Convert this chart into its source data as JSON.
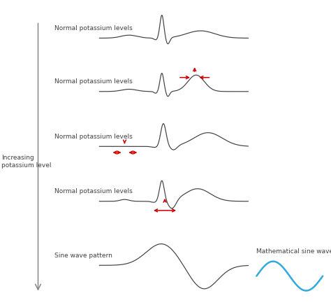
{
  "bg_color": "#ffffff",
  "text_color": "#404040",
  "arrow_color": "#cc0000",
  "sine_wave_color": "#33aadd",
  "ecg_color": "#404040",
  "figsize": [
    4.74,
    4.36
  ],
  "dpi": 100,
  "row_labels": [
    "Normal potassium levels",
    "Normal potassium levels",
    "Normal potassium levels",
    "Normal potassium levels",
    "Sine wave pattern"
  ],
  "increasing_label": "Increasing\npotassium level",
  "math_sine_label": "Mathematical sine wave",
  "row_label_fontsize": 6.5,
  "math_sine_label_fontsize": 6.5,
  "increasing_label_fontsize": 6.5
}
